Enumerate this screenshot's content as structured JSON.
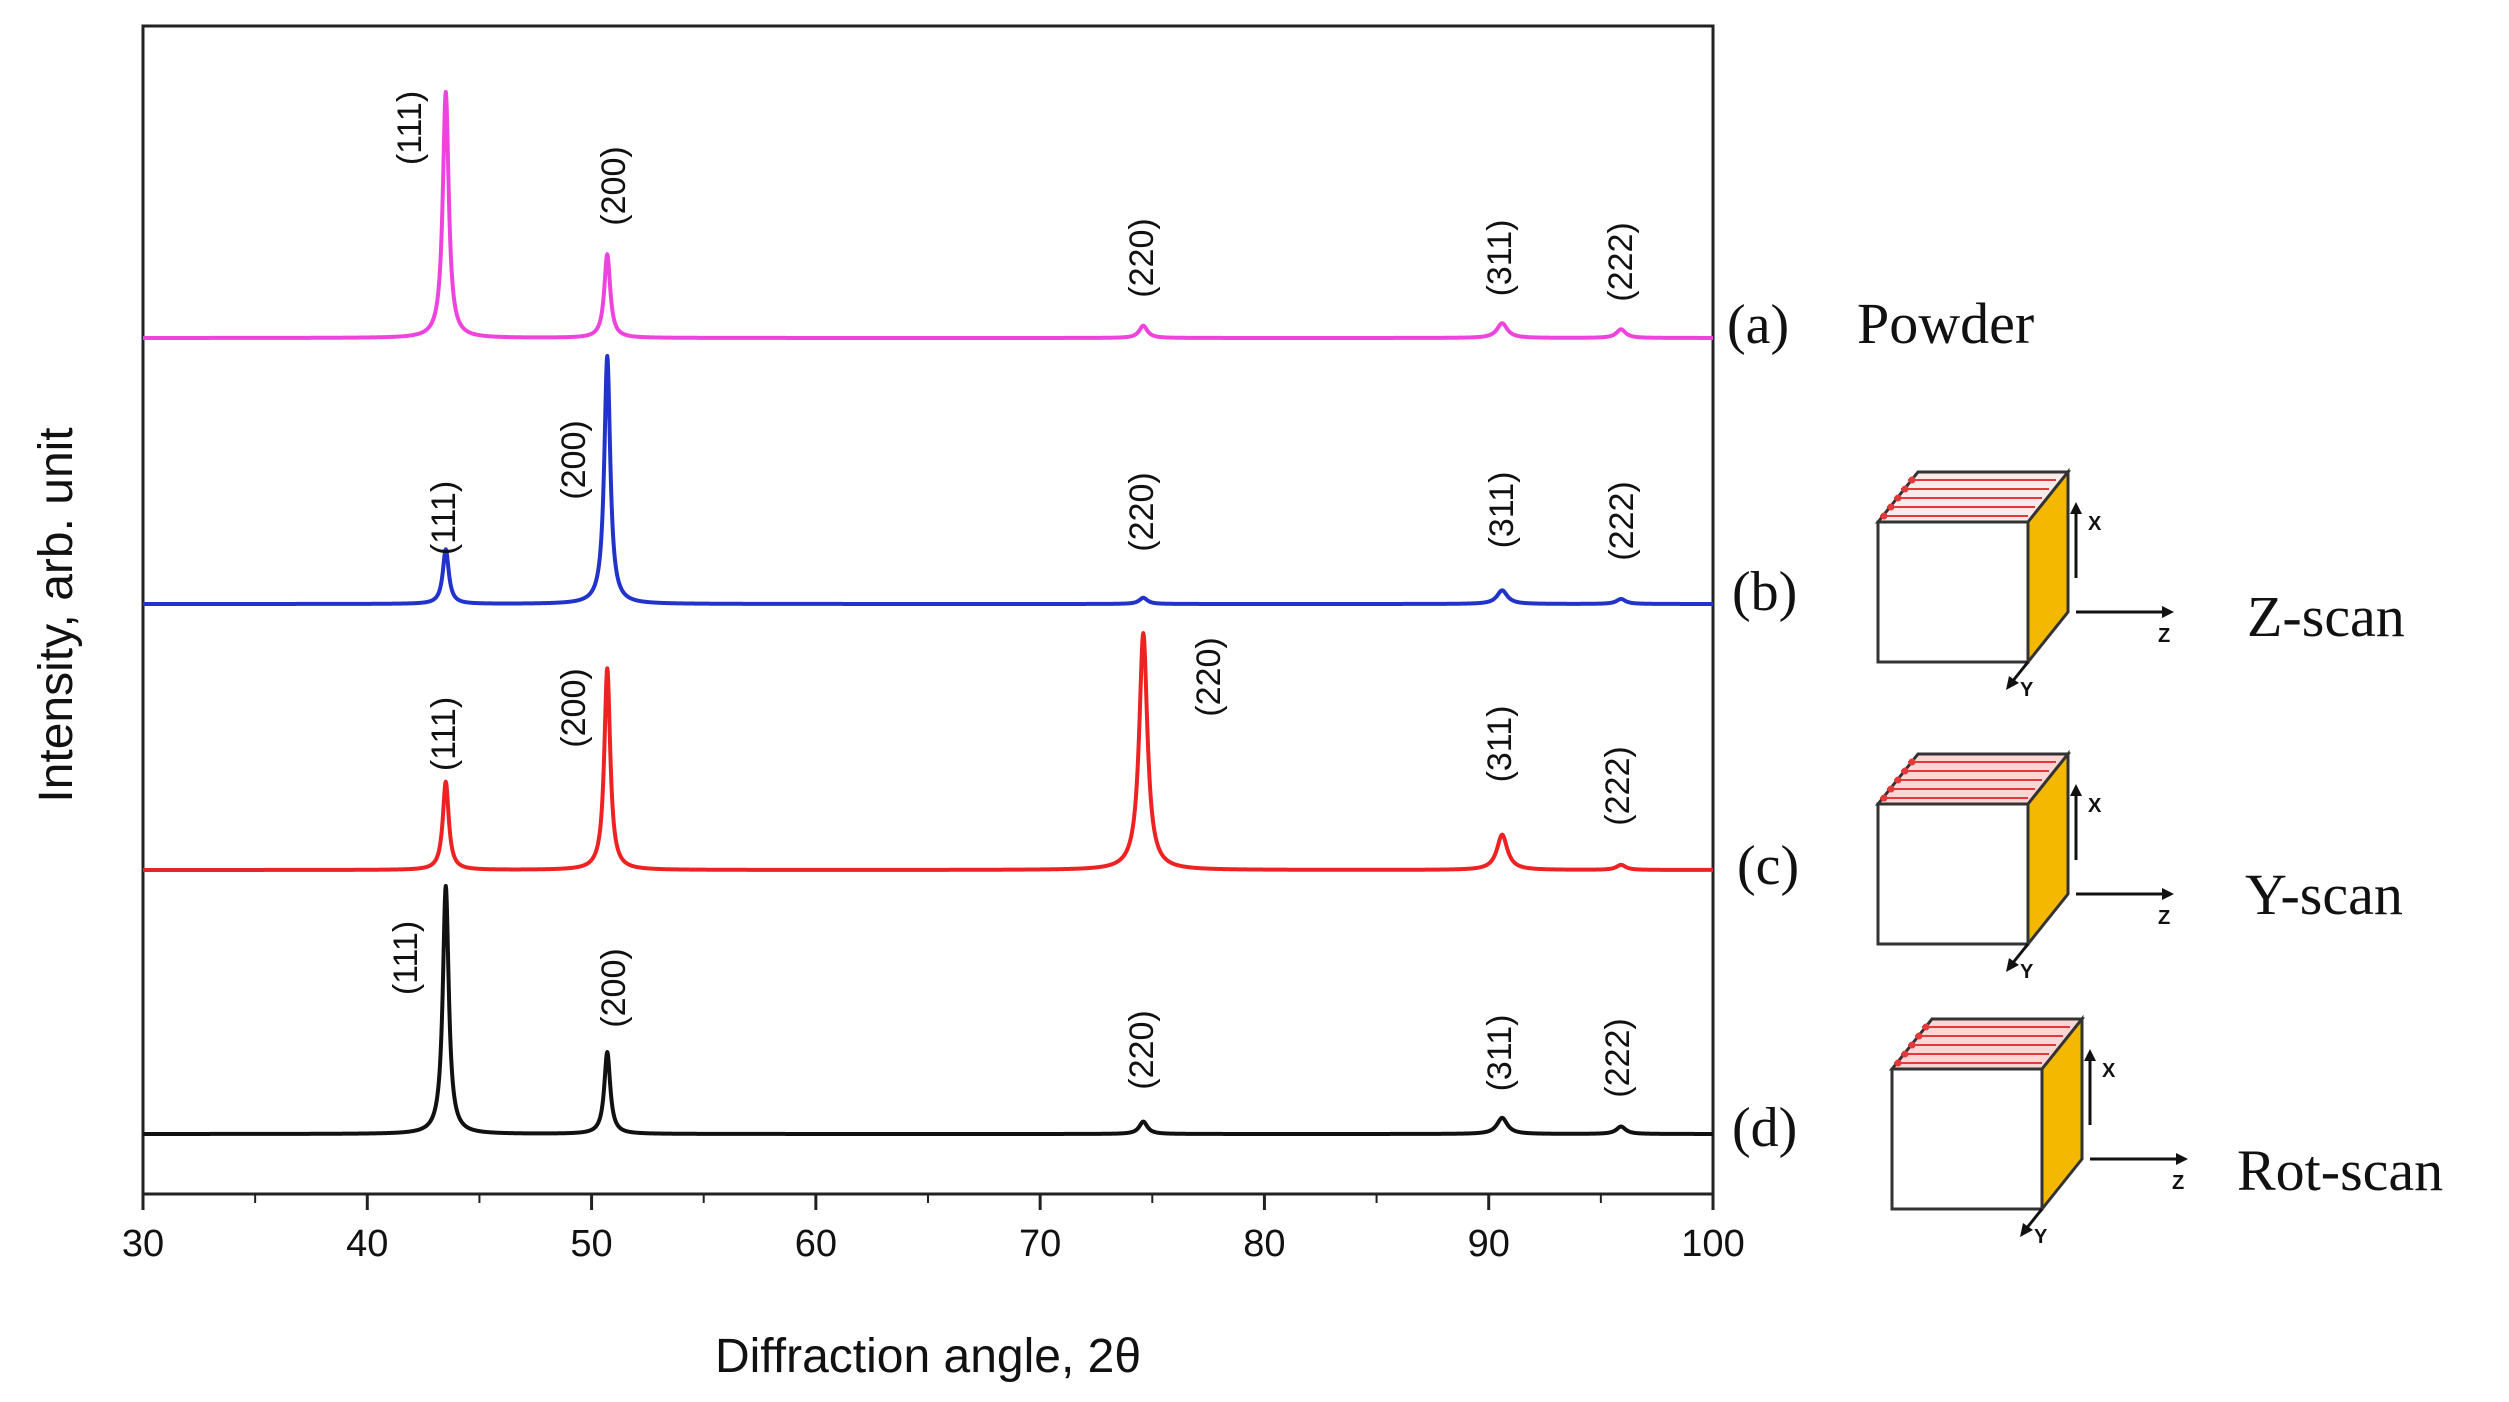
{
  "chart_data": {
    "type": "line",
    "title": "",
    "xlabel": "Diffraction angle, 2θ",
    "ylabel": "Intensity, arb. unit",
    "xlim": [
      30,
      100
    ],
    "x_ticks": [
      "30",
      "40",
      "50",
      "60",
      "70",
      "80",
      "90",
      "100"
    ],
    "y_ticks": [],
    "grid": false,
    "peak_positions": [
      43.5,
      50.7,
      74.6,
      90.6,
      95.9
    ],
    "series": [
      {
        "id": "a",
        "tag": "(a)",
        "name": "Powder",
        "color": "#ee44dd",
        "peak_heights": [
          1.0,
          0.34,
          0.05,
          0.06,
          0.035
        ],
        "peak_labels": [
          "(111)",
          "(200)",
          "(220)",
          "(311)",
          "(222)"
        ]
      },
      {
        "id": "b",
        "tag": "(b)",
        "name": "Z-scan",
        "color": "#2233cc",
        "peak_heights": [
          0.22,
          1.0,
          0.025,
          0.055,
          0.02
        ],
        "peak_labels": [
          "(111)",
          "(200)",
          "(220)",
          "(311)",
          "(222)"
        ]
      },
      {
        "id": "c",
        "tag": "(c)",
        "name": "Y-scan",
        "color": "#ee2222",
        "peak_heights": [
          0.35,
          0.8,
          0.94,
          0.14,
          0.02
        ],
        "peak_labels": [
          "(111)",
          "(200)",
          "(220)",
          "(311)",
          "(222)"
        ]
      },
      {
        "id": "d",
        "tag": "(d)",
        "name": "Rot-scan",
        "color": "#111111",
        "peak_heights": [
          1.0,
          0.33,
          0.05,
          0.065,
          0.03
        ],
        "peak_labels": [
          "(111)",
          "(200)",
          "(220)",
          "(311)",
          "(222)"
        ]
      }
    ]
  },
  "insets": {
    "axis_labels": {
      "x": "X",
      "y": "Y",
      "z": "Z"
    },
    "face_color": "#f5b800",
    "arrow_color": "#e23a3a"
  }
}
